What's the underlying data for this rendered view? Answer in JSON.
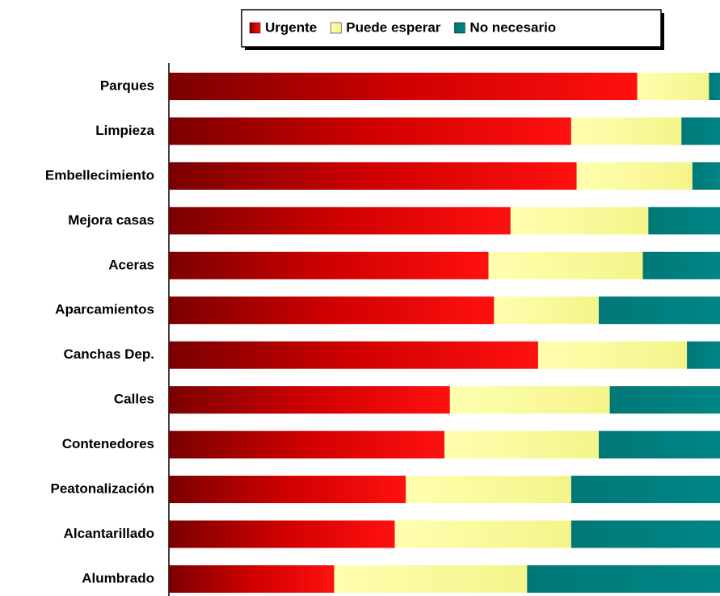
{
  "chart_data": {
    "type": "stacked-bar-horizontal",
    "categories": [
      "Parques",
      "Limpieza",
      "Embellecimiento",
      "Mejora casas",
      "Aceras",
      "Aparcamientos",
      "Canchas Dep.",
      "Calles",
      "Contenedores",
      "Peatonalización",
      "Alcantarillado",
      "Alumbrado"
    ],
    "series": [
      {
        "name": "Urgente",
        "color": "#e00000",
        "values": [
          85,
          73,
          74,
          62,
          58,
          59,
          67,
          51,
          50,
          43,
          41,
          30
        ]
      },
      {
        "name": "Puede esperar",
        "color": "#ffff99",
        "values": [
          13,
          20,
          21,
          25,
          28,
          19,
          27,
          29,
          28,
          30,
          32,
          35
        ]
      },
      {
        "name": "No necesario",
        "color": "#008080",
        "values": [
          2,
          7,
          5,
          13,
          14,
          22,
          6,
          20,
          22,
          27,
          27,
          35
        ]
      }
    ],
    "xlim": [
      0,
      100
    ],
    "legend": "top"
  }
}
